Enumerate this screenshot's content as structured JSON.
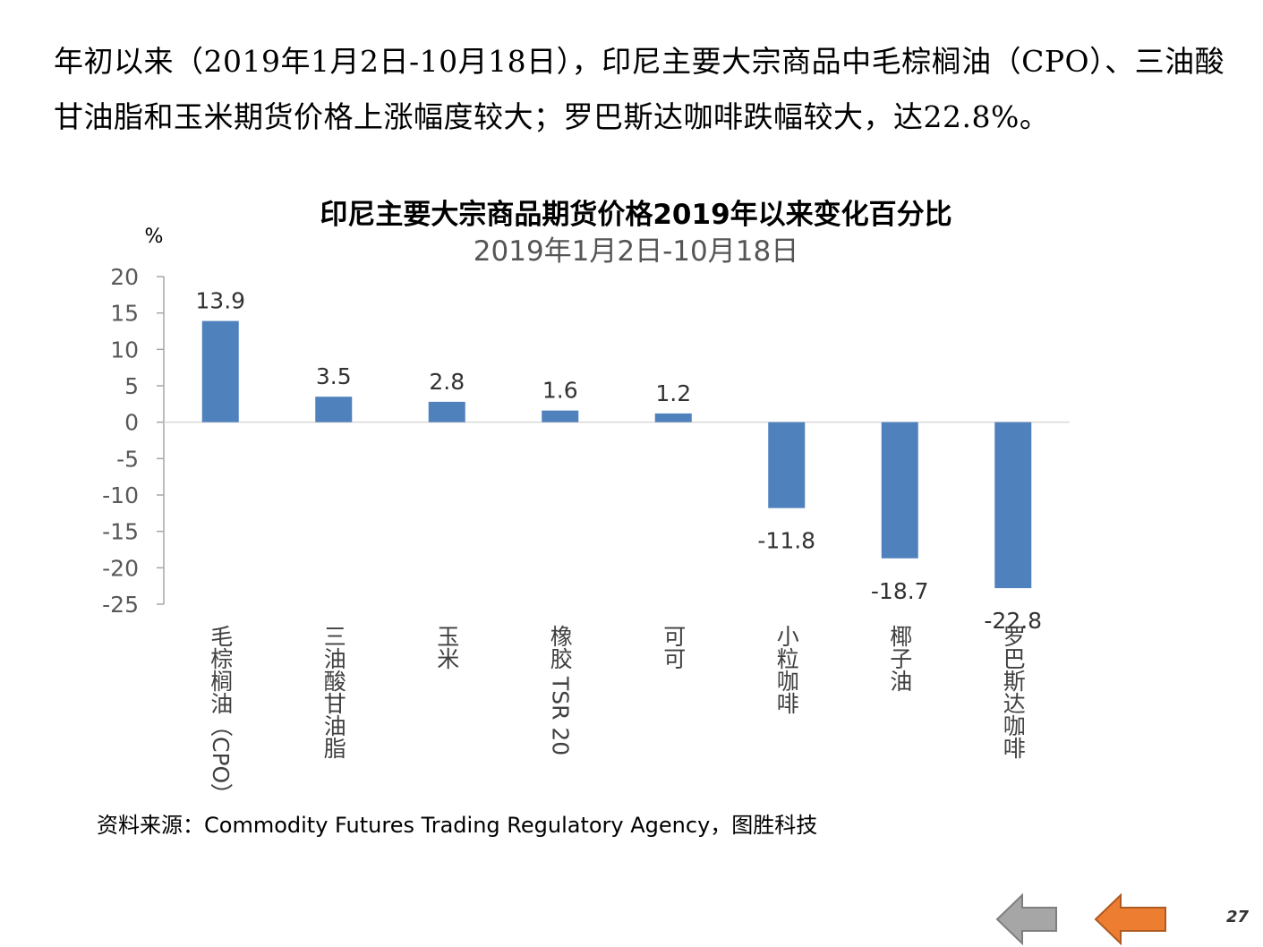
{
  "intro_text": "年初以来（2019年1月2日-10月18日），印尼主要大宗商品中毛棕榈油（CPO）、三油酸甘油脂和玉米期货价格上涨幅度较大；罗巴斯达咖啡跌幅较大，达22.8%。",
  "source": "资料来源：Commodity Futures Trading Regulatory Agency，图胜科技",
  "page_number": "27",
  "nav": {
    "back_icon": "gray-left-arrow-icon",
    "prev_icon": "orange-left-arrow-icon",
    "back_color": "#a6a6a6",
    "prev_color": "#ed7d31"
  },
  "chart_data": {
    "type": "bar",
    "title": "印尼主要大宗商品期货价格2019年以来变化百分比",
    "subtitle": "2019年1月2日-10月18日",
    "ylabel": "%",
    "ylim": [
      -25,
      20
    ],
    "yticks": [
      20,
      15,
      10,
      5,
      0,
      -5,
      -10,
      -15,
      -20,
      -25
    ],
    "categories": [
      "毛棕榈油（CPO）",
      "三油酸甘油脂",
      "玉米",
      "橡胶 TSR 20",
      "可可",
      "小粒咖啡",
      "椰子油",
      "罗巴斯达咖啡"
    ],
    "values": [
      13.9,
      3.5,
      2.8,
      1.6,
      1.2,
      -11.8,
      -18.7,
      -22.8
    ],
    "data_labels": [
      "13.9",
      "3.5",
      "2.8",
      "1.6",
      "1.2",
      "-11.8",
      "-18.7",
      "-22.8"
    ],
    "bar_color": "#4f81bd",
    "grid": false,
    "legend": "none"
  }
}
